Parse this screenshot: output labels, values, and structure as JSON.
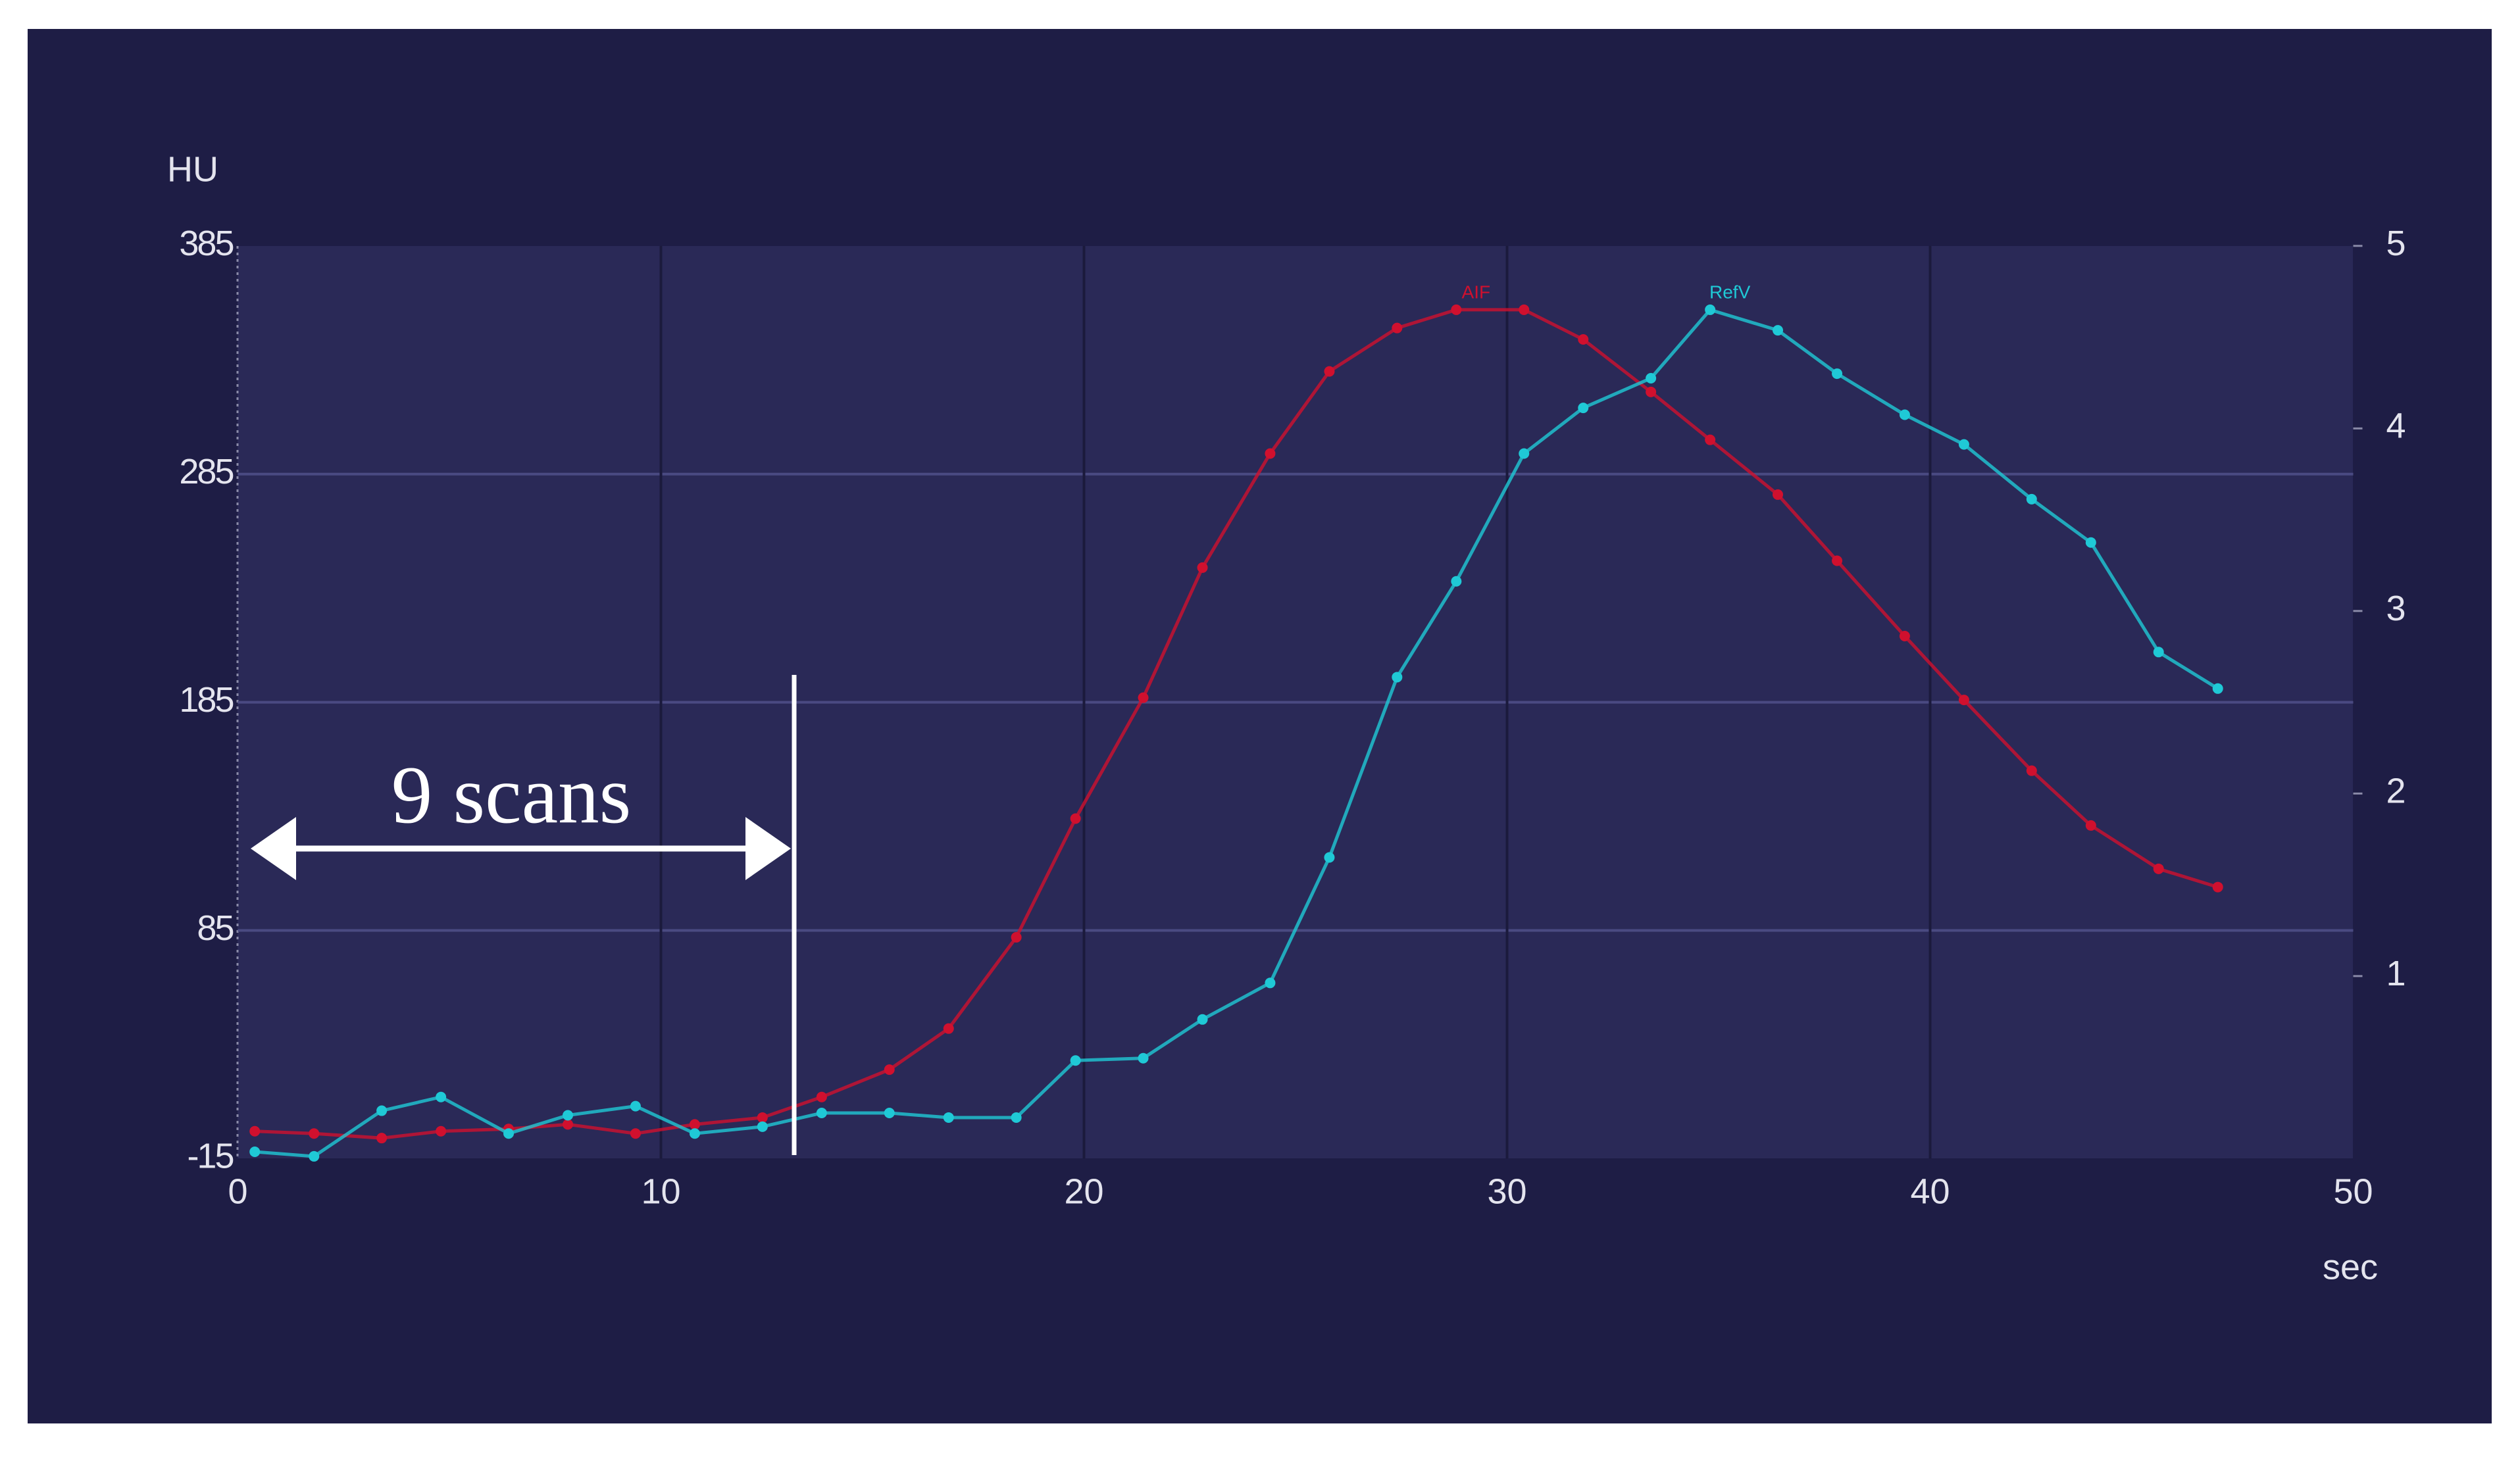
{
  "chart_data": {
    "type": "line",
    "y_label": "HU",
    "x_label": "sec",
    "annotation": "9 scans",
    "x": [
      0.4,
      1.8,
      3.4,
      4.8,
      6.4,
      7.8,
      9.4,
      10.8,
      12.4,
      13.8,
      15.4,
      16.8,
      18.4,
      19.8,
      21.4,
      22.8,
      24.4,
      25.8,
      27.4,
      28.8,
      30.4,
      31.8,
      33.4,
      34.8,
      36.4,
      37.8,
      39.4,
      40.8,
      42.4,
      43.8,
      45.4,
      46.8
    ],
    "series": [
      {
        "name": "AIF",
        "color": "#d0102e",
        "values": [
          -3,
          -4,
          -6,
          -3,
          -2,
          0,
          -4,
          0,
          3,
          12,
          24,
          42,
          82,
          134,
          187,
          244,
          294,
          330,
          349,
          357,
          357,
          344,
          321,
          300,
          276,
          247,
          214,
          186,
          155,
          131,
          112,
          104
        ]
      },
      {
        "name": "RefV",
        "color": "#1fc9d6",
        "values": [
          -12,
          -14,
          6,
          12,
          -4,
          4,
          8,
          -4,
          -1,
          5,
          5,
          3,
          3,
          28,
          29,
          46,
          62,
          117,
          196,
          238,
          294,
          314,
          327,
          357,
          348,
          329,
          311,
          298,
          274,
          255,
          207,
          191
        ]
      }
    ],
    "xlim": [
      0,
      50
    ],
    "xticks": [
      0,
      10,
      20,
      30,
      40,
      50
    ],
    "ylim": [
      -15,
      385
    ],
    "yticks": [
      -15,
      85,
      185,
      285,
      385
    ],
    "y2lim": [
      0,
      5
    ],
    "y2ticks": [
      1,
      2,
      3,
      4,
      5
    ],
    "grid": true
  }
}
